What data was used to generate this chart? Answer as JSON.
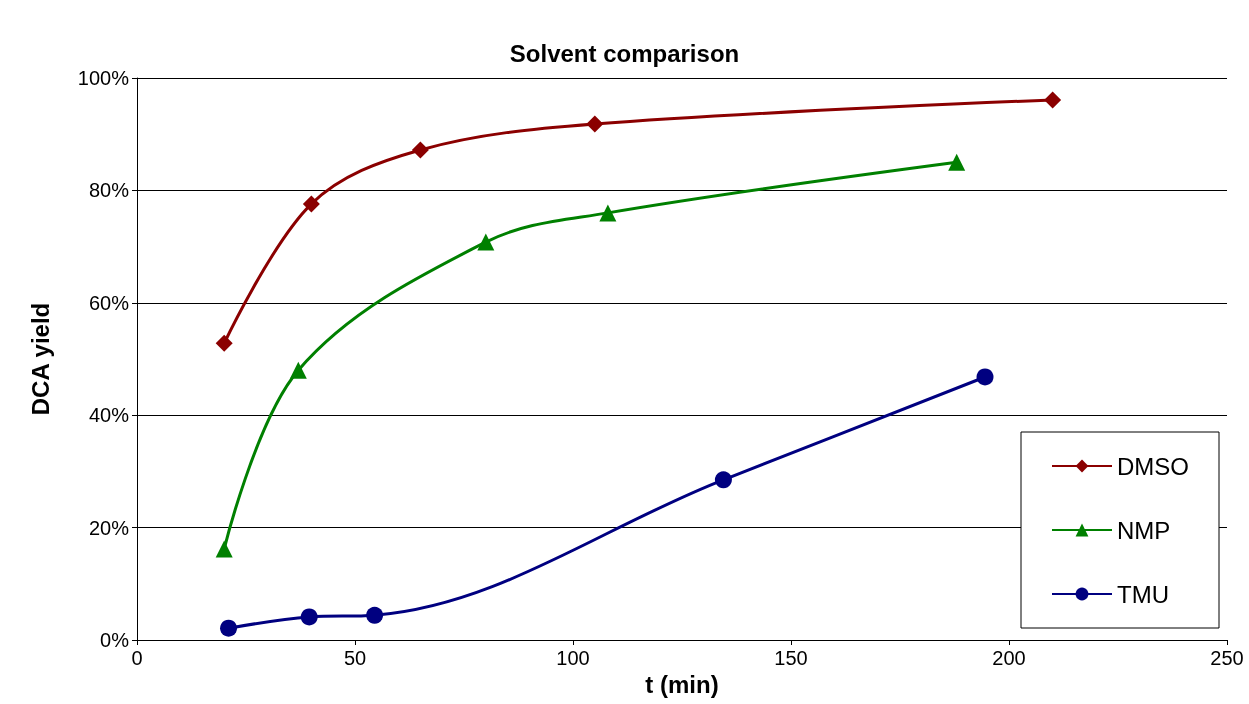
{
  "chart_data": {
    "type": "line",
    "title": "Solvent comparison",
    "xlabel": "t (min)",
    "ylabel": "DCA yield",
    "xlim": [
      0,
      250
    ],
    "xticks": [
      0,
      50,
      100,
      150,
      200,
      250
    ],
    "ylim": [
      0,
      100
    ],
    "yticks": [
      {
        "value": 0,
        "label": "0%"
      },
      {
        "value": 20,
        "label": "20%"
      },
      {
        "value": 40,
        "label": "40%"
      },
      {
        "value": 60,
        "label": "60%"
      },
      {
        "value": 80,
        "label": "80%"
      },
      {
        "value": 100,
        "label": "100%"
      }
    ],
    "grid": "y",
    "legend": "right",
    "series": [
      {
        "name": "DMSO",
        "color": "#8b0000",
        "marker": "diamond",
        "x": [
          20,
          40,
          65,
          105,
          210
        ],
        "values": [
          52.8,
          77.6,
          87.2,
          91.8,
          96.1
        ]
      },
      {
        "name": "NMP",
        "color": "#008000",
        "marker": "triangle",
        "x": [
          20,
          37,
          80,
          108,
          188
        ],
        "values": [
          16.2,
          48,
          70.8,
          76,
          85
        ]
      },
      {
        "name": "TMU",
        "color": "#000080",
        "marker": "circle",
        "x": [
          21,
          39.5,
          54.5,
          134.5,
          194.5
        ],
        "values": [
          2.1,
          4.1,
          4.4,
          28.5,
          46.8
        ]
      }
    ]
  }
}
